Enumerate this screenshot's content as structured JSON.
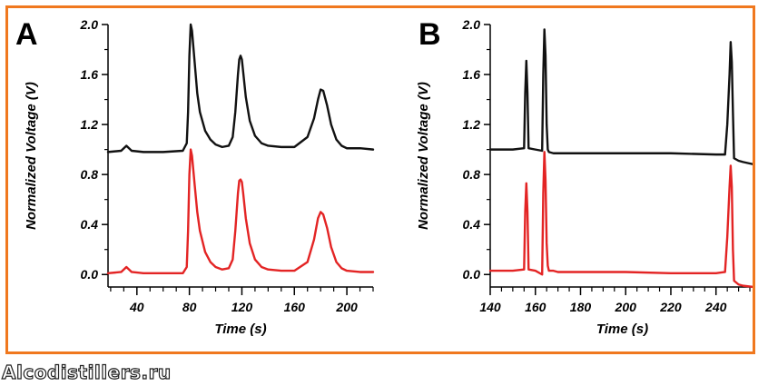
{
  "colors": {
    "frame": "#f0781e",
    "axis": "#000000",
    "upper_trace": "#111111",
    "lower_trace": "#e32424"
  },
  "watermark": "Alcodistillers.ru",
  "chart_data": [
    {
      "type": "line",
      "panel_label": "A",
      "xlabel": "Time (s)",
      "ylabel": "Normalized Voltage (V)",
      "xlim": [
        18,
        220
      ],
      "ylim": [
        -0.1,
        2.0
      ],
      "xticks": [
        40,
        80,
        120,
        160,
        200
      ],
      "yticks": [
        0.0,
        0.4,
        0.8,
        1.2,
        1.6,
        2.0
      ],
      "xtick_labels": [
        "40",
        "80",
        "120",
        "160",
        "200"
      ],
      "ytick_labels": [
        "0.0",
        "0.4",
        "0.8",
        "1.2",
        "1.6",
        "2.0"
      ],
      "grid": false,
      "series": [
        {
          "color": "#111111",
          "x": [
            18,
            28,
            30,
            32,
            34,
            36,
            45,
            60,
            75,
            78,
            79,
            80,
            81,
            82,
            84,
            86,
            88,
            92,
            96,
            100,
            105,
            110,
            113,
            115,
            117,
            118,
            119,
            120,
            121,
            123,
            126,
            130,
            135,
            140,
            150,
            160,
            170,
            175,
            178,
            180,
            182,
            185,
            188,
            192,
            196,
            200,
            210,
            220
          ],
          "y": [
            0.98,
            0.99,
            1.01,
            1.03,
            1.01,
            0.99,
            0.98,
            0.98,
            0.99,
            1.05,
            1.3,
            1.75,
            2.0,
            1.95,
            1.7,
            1.45,
            1.3,
            1.15,
            1.08,
            1.04,
            1.02,
            1.03,
            1.1,
            1.3,
            1.6,
            1.72,
            1.75,
            1.72,
            1.62,
            1.42,
            1.23,
            1.11,
            1.05,
            1.03,
            1.02,
            1.02,
            1.1,
            1.25,
            1.4,
            1.48,
            1.47,
            1.35,
            1.2,
            1.08,
            1.03,
            1.01,
            1.01,
            1.0
          ]
        },
        {
          "color": "#e32424",
          "x": [
            18,
            28,
            30,
            32,
            34,
            36,
            45,
            60,
            75,
            78,
            79,
            80,
            81,
            82,
            84,
            86,
            88,
            92,
            96,
            100,
            105,
            110,
            113,
            115,
            117,
            118,
            119,
            120,
            121,
            123,
            126,
            130,
            135,
            140,
            150,
            160,
            170,
            175,
            178,
            180,
            182,
            185,
            188,
            192,
            196,
            200,
            210,
            220
          ],
          "y": [
            0.01,
            0.02,
            0.04,
            0.06,
            0.04,
            0.02,
            0.01,
            0.01,
            0.01,
            0.06,
            0.35,
            0.8,
            1.0,
            0.95,
            0.72,
            0.5,
            0.35,
            0.18,
            0.1,
            0.06,
            0.04,
            0.05,
            0.12,
            0.35,
            0.65,
            0.75,
            0.76,
            0.74,
            0.65,
            0.45,
            0.25,
            0.12,
            0.06,
            0.04,
            0.03,
            0.03,
            0.1,
            0.28,
            0.45,
            0.5,
            0.48,
            0.37,
            0.22,
            0.1,
            0.05,
            0.03,
            0.02,
            0.02
          ]
        }
      ]
    },
    {
      "type": "line",
      "panel_label": "B",
      "xlabel": "Time (s)",
      "ylabel": "Normalized Voltage (V)",
      "xlim": [
        140,
        257
      ],
      "ylim": [
        -0.1,
        2.0
      ],
      "xticks": [
        140,
        160,
        180,
        200,
        220,
        240
      ],
      "yticks": [
        0.0,
        0.4,
        0.8,
        1.2,
        1.6,
        2.0
      ],
      "xtick_labels": [
        "140",
        "160",
        "180",
        "200",
        "220",
        "240"
      ],
      "ytick_labels": [
        "0.0",
        "0.4",
        "0.8",
        "1.2",
        "1.6",
        "2.0"
      ],
      "grid": false,
      "series": [
        {
          "color": "#111111",
          "x": [
            140,
            150,
            155,
            155.5,
            156,
            156.5,
            157,
            160,
            163,
            163.5,
            164,
            164.5,
            165,
            165.5,
            166,
            168,
            170,
            180,
            200,
            220,
            240,
            244,
            245,
            246,
            246.5,
            247,
            247.5,
            248,
            250,
            252,
            257
          ],
          "y": [
            1.0,
            1.0,
            1.01,
            1.45,
            1.71,
            1.45,
            1.01,
            1.0,
            0.99,
            1.6,
            1.96,
            1.75,
            1.2,
            1.0,
            0.98,
            0.97,
            0.97,
            0.97,
            0.97,
            0.97,
            0.96,
            0.96,
            1.2,
            1.6,
            1.86,
            1.7,
            1.3,
            0.93,
            0.91,
            0.9,
            0.88
          ]
        },
        {
          "color": "#e32424",
          "x": [
            140,
            150,
            155,
            155.5,
            156,
            156.5,
            157,
            160,
            163,
            163.5,
            164,
            164.5,
            165,
            165.5,
            166,
            168,
            170,
            180,
            200,
            220,
            240,
            244,
            245,
            246,
            246.5,
            247,
            247.5,
            248,
            250,
            252,
            257
          ],
          "y": [
            0.03,
            0.03,
            0.04,
            0.5,
            0.73,
            0.5,
            0.04,
            0.03,
            0.0,
            0.65,
            0.98,
            0.75,
            0.25,
            0.07,
            0.03,
            0.03,
            0.02,
            0.02,
            0.02,
            0.01,
            0.01,
            0.02,
            0.3,
            0.7,
            0.87,
            0.7,
            0.2,
            -0.05,
            -0.08,
            -0.09,
            -0.1
          ]
        }
      ]
    }
  ]
}
